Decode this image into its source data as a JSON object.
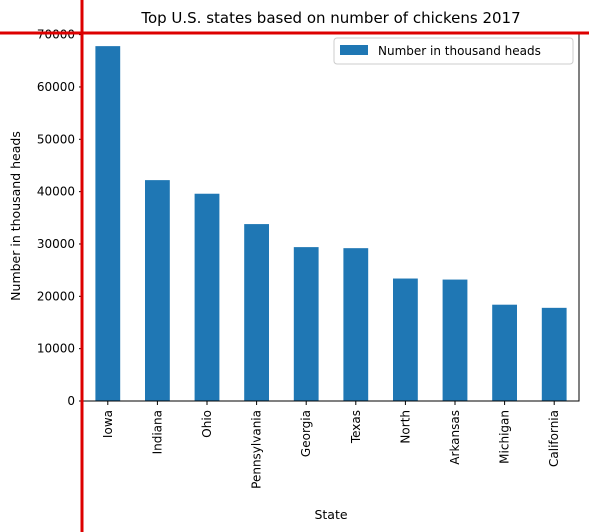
{
  "chart_data": {
    "type": "bar",
    "title": "Top U.S. states based on number of chickens 2017",
    "xlabel": "State",
    "ylabel": "Number in thousand heads",
    "categories": [
      "Iowa",
      "Indiana",
      "Ohio",
      "Pennsylvania",
      "Georgia",
      "Texas",
      "North",
      "Arkansas",
      "Michigan",
      "California"
    ],
    "series": [
      {
        "name": "Number in thousand heads",
        "color": "#1f77b4",
        "values": [
          67800,
          42200,
          39600,
          33800,
          29400,
          29200,
          23400,
          23200,
          18400,
          17800
        ]
      }
    ],
    "ylim": [
      0,
      70500
    ],
    "yticks": [
      0,
      10000,
      20000,
      30000,
      40000,
      50000,
      60000,
      70000
    ],
    "grid": false,
    "legend": "top-right"
  },
  "overlay": {
    "line_color": "#dd0000"
  }
}
